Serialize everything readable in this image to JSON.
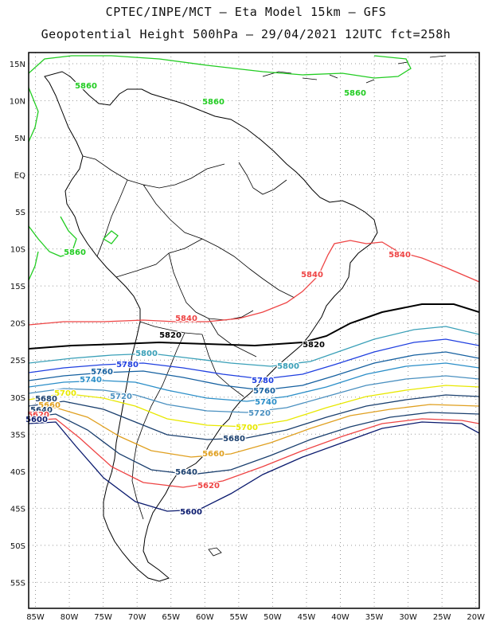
{
  "header": {
    "line1": "CPTEC/INPE/MCT –  Eta Model 15km – GFS",
    "line2": "Geopotential Height 500hPa – 29/04/2021 12UTC fct=258h"
  },
  "map": {
    "lat_labels": [
      "15N",
      "10N",
      "5N",
      "EQ",
      "5S",
      "10S",
      "15S",
      "20S",
      "25S",
      "30S",
      "35S",
      "40S",
      "45S",
      "50S",
      "55S"
    ],
    "lon_labels": [
      "85W",
      "80W",
      "75W",
      "70W",
      "65W",
      "60W",
      "55W",
      "50W",
      "45W",
      "40W",
      "35W",
      "30W",
      "25W",
      "20W"
    ],
    "lat_values": [
      15,
      10,
      5,
      0,
      -5,
      -10,
      -15,
      -20,
      -25,
      -30,
      -35,
      -40,
      -45,
      -50,
      -55
    ],
    "lon_values": [
      -85,
      -80,
      -75,
      -70,
      -65,
      -60,
      -55,
      -50,
      -45,
      -40,
      -35,
      -30,
      -25,
      -20
    ],
    "extent": {
      "lon_min": -86,
      "lon_max": -19.5,
      "lat_min": -58.5,
      "lat_max": 16.5
    }
  },
  "contours": [
    {
      "value": 5860,
      "color": "#22cc22",
      "labels": [
        "5860",
        "5860",
        "5860",
        "5860"
      ]
    },
    {
      "value": 5840,
      "color": "#ee4444",
      "labels": [
        "5840",
        "5840",
        "5840"
      ]
    },
    {
      "value": 5820,
      "color": "#000000",
      "labels": [
        "5820",
        "5820"
      ]
    },
    {
      "value": 5800,
      "color": "#3aa0b8",
      "labels": [
        "5800",
        "5800"
      ]
    },
    {
      "value": 5780,
      "color": "#1f3fe0",
      "labels": [
        "5780",
        "5780"
      ]
    },
    {
      "value": 5760,
      "color": "#1560a0",
      "labels": [
        "5760",
        "5760"
      ]
    },
    {
      "value": 5740,
      "color": "#2a8ec8",
      "labels": [
        "5740",
        "5740"
      ]
    },
    {
      "value": 5720,
      "color": "#4a90c0",
      "labels": [
        "5720",
        "5720"
      ]
    },
    {
      "value": 5700,
      "color": "#e8e800",
      "labels": [
        "5700",
        "5700"
      ]
    },
    {
      "value": 5680,
      "color": "#1a3f6e",
      "labels": [
        "5680",
        "5680"
      ]
    },
    {
      "value": 5660,
      "color": "#e0a020",
      "labels": [
        "5660",
        "5660"
      ]
    },
    {
      "value": 5640,
      "color": "#1a3f6e",
      "labels": [
        "5640",
        "5640"
      ]
    },
    {
      "value": 5620,
      "color": "#ee4444",
      "labels": [
        "5620",
        "5620"
      ]
    },
    {
      "value": 5600,
      "color": "#0a1a6e",
      "labels": [
        "5600",
        "5600"
      ]
    }
  ]
}
